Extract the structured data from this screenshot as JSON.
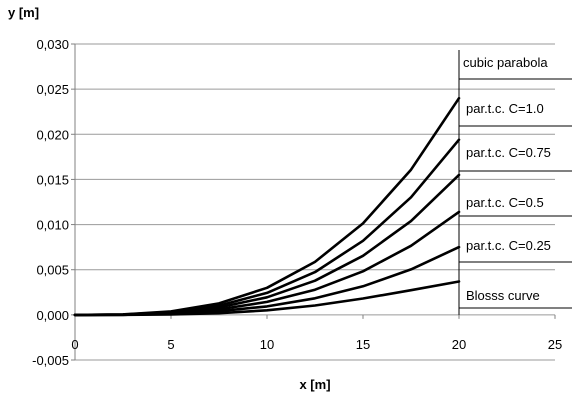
{
  "chart_data": {
    "type": "line",
    "xlabel": "x [m]",
    "ylabel": "y [m]",
    "xlim": [
      0,
      25
    ],
    "ylim": [
      -0.005,
      0.03
    ],
    "x_ticks": [
      "0",
      "5",
      "10",
      "15",
      "20",
      "25"
    ],
    "y_ticks": [
      "-0,005",
      "0,000",
      "0,005",
      "0,010",
      "0,015",
      "0,020",
      "0,025",
      "0,030"
    ],
    "grid": "horizontal",
    "legend_placement": "right of curve ends",
    "series": [
      {
        "name": "cubic parabola",
        "x": [
          0,
          2.5,
          5,
          7.5,
          10,
          12.5,
          15,
          17.5,
          20
        ],
        "y": [
          0.0,
          5e-05,
          0.00038,
          0.00127,
          0.003,
          0.00586,
          0.01013,
          0.01608,
          0.024
        ]
      },
      {
        "name": "par.t.c. C=1.0",
        "x": [
          0,
          2.5,
          5,
          7.5,
          10,
          12.5,
          15,
          17.5,
          20
        ],
        "y": [
          0.0,
          4e-05,
          0.0003,
          0.00103,
          0.00243,
          0.00474,
          0.0082,
          0.01302,
          0.0194
        ]
      },
      {
        "name": "par.t.c. C=0.75",
        "x": [
          0,
          2.5,
          5,
          7.5,
          10,
          12.5,
          15,
          17.5,
          20
        ],
        "y": [
          0.0,
          3e-05,
          0.00024,
          0.00082,
          0.00194,
          0.00378,
          0.00654,
          0.01038,
          0.0155
        ]
      },
      {
        "name": "par.t.c. C=0.5",
        "x": [
          0,
          2.5,
          5,
          7.5,
          10,
          12.5,
          15,
          17.5,
          20
        ],
        "y": [
          0.0,
          2e-05,
          0.00018,
          0.0006,
          0.00143,
          0.00279,
          0.00482,
          0.00765,
          0.0114
        ]
      },
      {
        "name": "par.t.c. C=0.25",
        "x": [
          0,
          2.5,
          5,
          7.5,
          10,
          12.5,
          15,
          17.5,
          20
        ],
        "y": [
          0.0,
          1e-05,
          0.00012,
          0.0004,
          0.00094,
          0.00183,
          0.00316,
          0.00503,
          0.0075
        ]
      },
      {
        "name": "Blosss curve",
        "x": [
          0,
          2.5,
          5,
          7.5,
          10,
          12.5,
          15,
          17.5,
          20
        ],
        "y": [
          0.0,
          0.0,
          4e-05,
          0.00018,
          0.0005,
          0.00104,
          0.00181,
          0.00273,
          0.0037
        ]
      }
    ]
  }
}
